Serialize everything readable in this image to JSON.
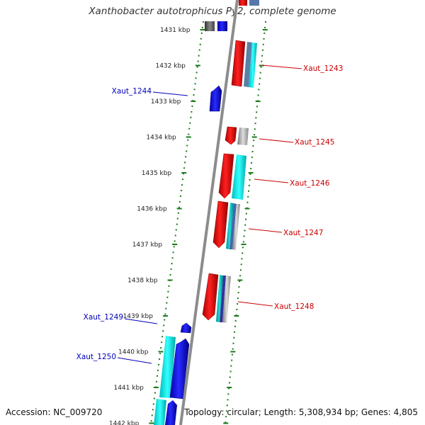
{
  "title": "Xanthobacter autotrophicus Py2, complete genome",
  "footer": {
    "accession": "Accession: NC_009720",
    "summary": "Topology: circular; Length: 5,308,934 bp; Genes: 4,805"
  },
  "colors": {
    "minus_strand_label": "#0000bb",
    "plus_strand_label": "#cc0000",
    "ruler_tick": "#1a7a1a",
    "backbone": "#8c8c8c"
  },
  "ruler": {
    "ticks": [
      {
        "kbp": 1431,
        "label": "1431 kbp"
      },
      {
        "kbp": 1432,
        "label": "1432 kbp"
      },
      {
        "kbp": 1433,
        "label": "1433 kbp"
      },
      {
        "kbp": 1434,
        "label": "1434 kbp"
      },
      {
        "kbp": 1435,
        "label": "1435 kbp"
      },
      {
        "kbp": 1436,
        "label": "1436 kbp"
      },
      {
        "kbp": 1437,
        "label": "1437 kbp"
      },
      {
        "kbp": 1438,
        "label": "1438 kbp"
      },
      {
        "kbp": 1439,
        "label": "1439 kbp"
      },
      {
        "kbp": 1440,
        "label": "1440 kbp"
      },
      {
        "kbp": 1441,
        "label": "1441 kbp"
      },
      {
        "kbp": 1442,
        "label": "1442 kbp"
      }
    ]
  },
  "genes": [
    {
      "name": "Xaut_1243",
      "strand": "+"
    },
    {
      "name": "Xaut_1244",
      "strand": "-"
    },
    {
      "name": "Xaut_1245",
      "strand": "+"
    },
    {
      "name": "Xaut_1246",
      "strand": "+"
    },
    {
      "name": "Xaut_1247",
      "strand": "+"
    },
    {
      "name": "Xaut_1248",
      "strand": "+"
    },
    {
      "name": "Xaut_1249",
      "strand": "-"
    },
    {
      "name": "Xaut_1250",
      "strand": "-"
    }
  ]
}
